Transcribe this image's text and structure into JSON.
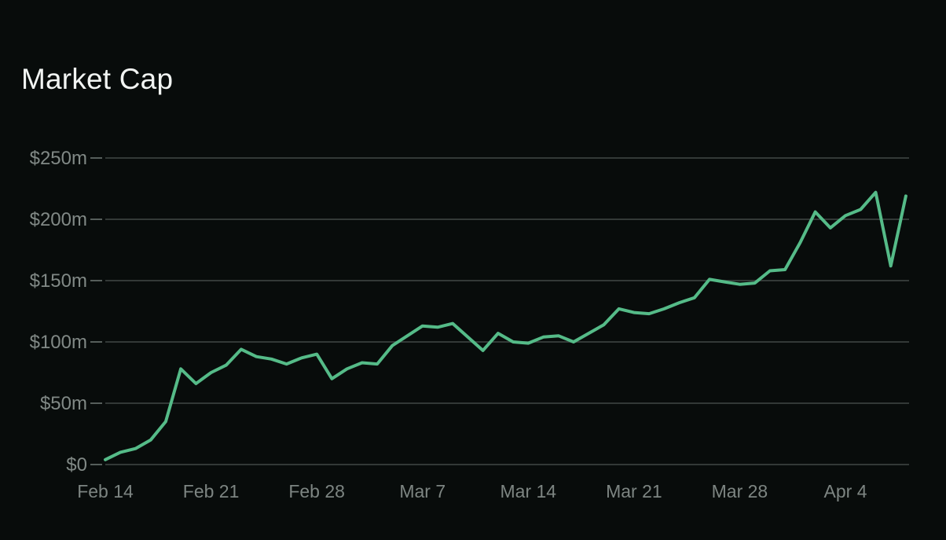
{
  "page": {
    "background_color": "#080c0b"
  },
  "chart_data": {
    "type": "line",
    "title": "Market Cap",
    "unit": "USD millions",
    "legend": "none",
    "grid": "horizontal",
    "ylim": [
      0,
      250
    ],
    "y_ticks": [
      250,
      200,
      150,
      100,
      50,
      0
    ],
    "y_tick_labels": [
      "$250m",
      "$200m",
      "$150m",
      "$100m",
      "$50m",
      "$0"
    ],
    "x_tick_labels": [
      "Feb 14",
      "Feb 21",
      "Feb 28",
      "Mar 7",
      "Mar 14",
      "Mar 21",
      "Mar 28",
      "Apr 4"
    ],
    "x_tick_indices": [
      0,
      7,
      14,
      21,
      28,
      35,
      42,
      49
    ],
    "x": [
      "Feb 14",
      "Feb 15",
      "Feb 16",
      "Feb 17",
      "Feb 18",
      "Feb 19",
      "Feb 20",
      "Feb 21",
      "Feb 22",
      "Feb 23",
      "Feb 24",
      "Feb 25",
      "Feb 26",
      "Feb 27",
      "Feb 28",
      "Mar 1",
      "Mar 2",
      "Mar 3",
      "Mar 4",
      "Mar 5",
      "Mar 6",
      "Mar 7",
      "Mar 8",
      "Mar 9",
      "Mar 10",
      "Mar 11",
      "Mar 12",
      "Mar 13",
      "Mar 14",
      "Mar 15",
      "Mar 16",
      "Mar 17",
      "Mar 18",
      "Mar 19",
      "Mar 20",
      "Mar 21",
      "Mar 22",
      "Mar 23",
      "Mar 24",
      "Mar 25",
      "Mar 26",
      "Mar 27",
      "Mar 28",
      "Mar 29",
      "Mar 30",
      "Mar 31",
      "Apr 1",
      "Apr 2",
      "Apr 3",
      "Apr 4",
      "Apr 5",
      "Apr 6",
      "Apr 7",
      "Apr 8"
    ],
    "series": [
      {
        "name": "Market Cap",
        "values": [
          4,
          10,
          13,
          20,
          35,
          78,
          66,
          75,
          81,
          94,
          88,
          86,
          82,
          87,
          90,
          70,
          78,
          83,
          82,
          97,
          105,
          113,
          112,
          115,
          104,
          93,
          107,
          100,
          99,
          104,
          105,
          100,
          107,
          114,
          127,
          124,
          123,
          127,
          132,
          136,
          151,
          149,
          147,
          148,
          158,
          159,
          181,
          206,
          193,
          203,
          208,
          222,
          162,
          219
        ]
      }
    ],
    "colors": {
      "line": "#55bb88",
      "background": "#080c0b",
      "grid_line": "#333937",
      "tick_mark": "#565e5b",
      "axis_label": "#7d8582",
      "title": "#f1f4f2"
    }
  }
}
